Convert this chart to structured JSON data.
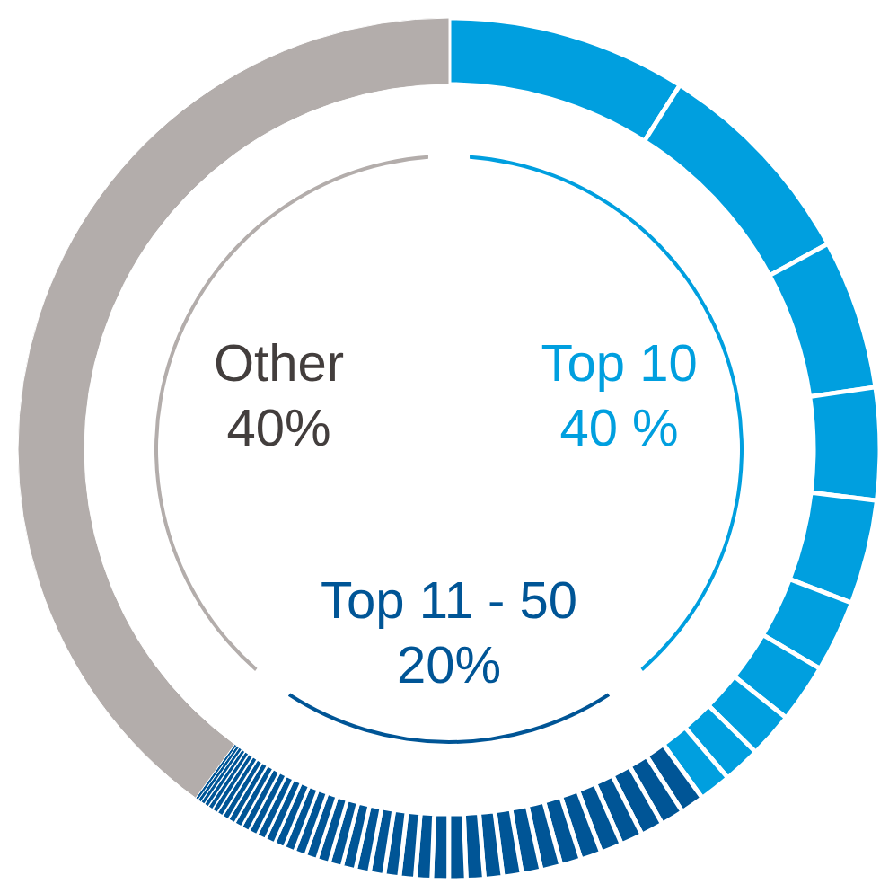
{
  "chart_data": [
    {
      "type": "donut",
      "categories": [
        null,
        null,
        null,
        null,
        null,
        null,
        null,
        null,
        null,
        null,
        null,
        null,
        null,
        null,
        null,
        null,
        null,
        null,
        null,
        null,
        null,
        null,
        null,
        null,
        null,
        null,
        null,
        null,
        null,
        null,
        null,
        null,
        null,
        null,
        null,
        null,
        null,
        null,
        null,
        null,
        null,
        null,
        null,
        null,
        null,
        null,
        null,
        null,
        null,
        null,
        null
      ],
      "values": [
        9.0,
        8.1,
        5.6,
        4.2,
        3.9,
        2.7,
        2.2,
        1.7,
        1.4,
        1.2,
        0.89,
        0.87,
        0.85,
        0.83,
        0.81,
        0.79,
        0.77,
        0.75,
        0.73,
        0.71,
        0.69,
        0.67,
        0.65,
        0.63,
        0.61,
        0.59,
        0.57,
        0.55,
        0.53,
        0.51,
        0.49,
        0.47,
        0.45,
        0.43,
        0.41,
        0.39,
        0.37,
        0.35,
        0.33,
        0.31,
        0.29,
        0.27,
        0.25,
        0.23,
        0.21,
        0.19,
        0.17,
        0.15,
        0.13,
        0.11,
        40
      ],
      "colors": [
        "#009fdf",
        "#009fdf",
        "#009fdf",
        "#009fdf",
        "#009fdf",
        "#009fdf",
        "#009fdf",
        "#009fdf",
        "#009fdf",
        "#009fdf",
        "#005596",
        "#005596",
        "#005596",
        "#005596",
        "#005596",
        "#005596",
        "#005596",
        "#005596",
        "#005596",
        "#005596",
        "#005596",
        "#005596",
        "#005596",
        "#005596",
        "#005596",
        "#005596",
        "#005596",
        "#005596",
        "#005596",
        "#005596",
        "#005596",
        "#005596",
        "#005596",
        "#005596",
        "#005596",
        "#005596",
        "#005596",
        "#005596",
        "#005596",
        "#005596",
        "#005596",
        "#005596",
        "#005596",
        "#005596",
        "#005596",
        "#005596",
        "#005596",
        "#005596",
        "#005596",
        "#005596",
        "#b3adab"
      ]
    },
    {
      "type": "donut",
      "categories": [
        "Top 10",
        "Top 11 - 50",
        "Other"
      ],
      "values": [
        40,
        20,
        40
      ],
      "value_labels": [
        "40 %",
        "20%",
        "40%"
      ],
      "colors": [
        "#009fdf",
        "#005596",
        "#b3adab"
      ]
    }
  ]
}
